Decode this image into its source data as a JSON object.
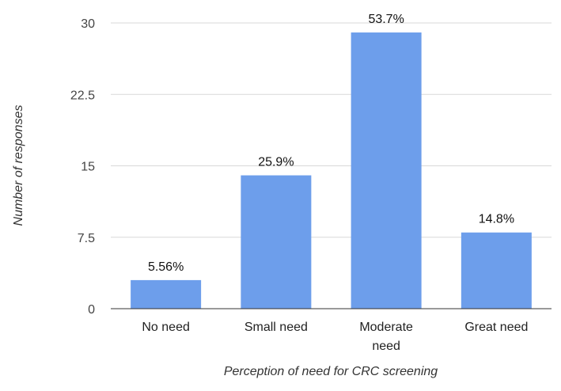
{
  "chart_data": {
    "type": "bar",
    "title": "",
    "xlabel": "Perception of need for CRC screening",
    "ylabel": "Number of responses",
    "categories": [
      [
        "No need"
      ],
      [
        "Small need"
      ],
      [
        "Moderate",
        "need"
      ],
      [
        "Great need"
      ]
    ],
    "values": [
      3,
      14,
      29,
      8
    ],
    "data_labels": [
      "5.56%",
      "25.9%",
      "53.7%",
      "14.8%"
    ],
    "ylim": [
      0,
      30
    ],
    "yticks": [
      "0",
      "7.5",
      "15",
      "22.5",
      "30"
    ],
    "grid": true,
    "legend": "none",
    "bar_color": "#6d9eeb"
  }
}
